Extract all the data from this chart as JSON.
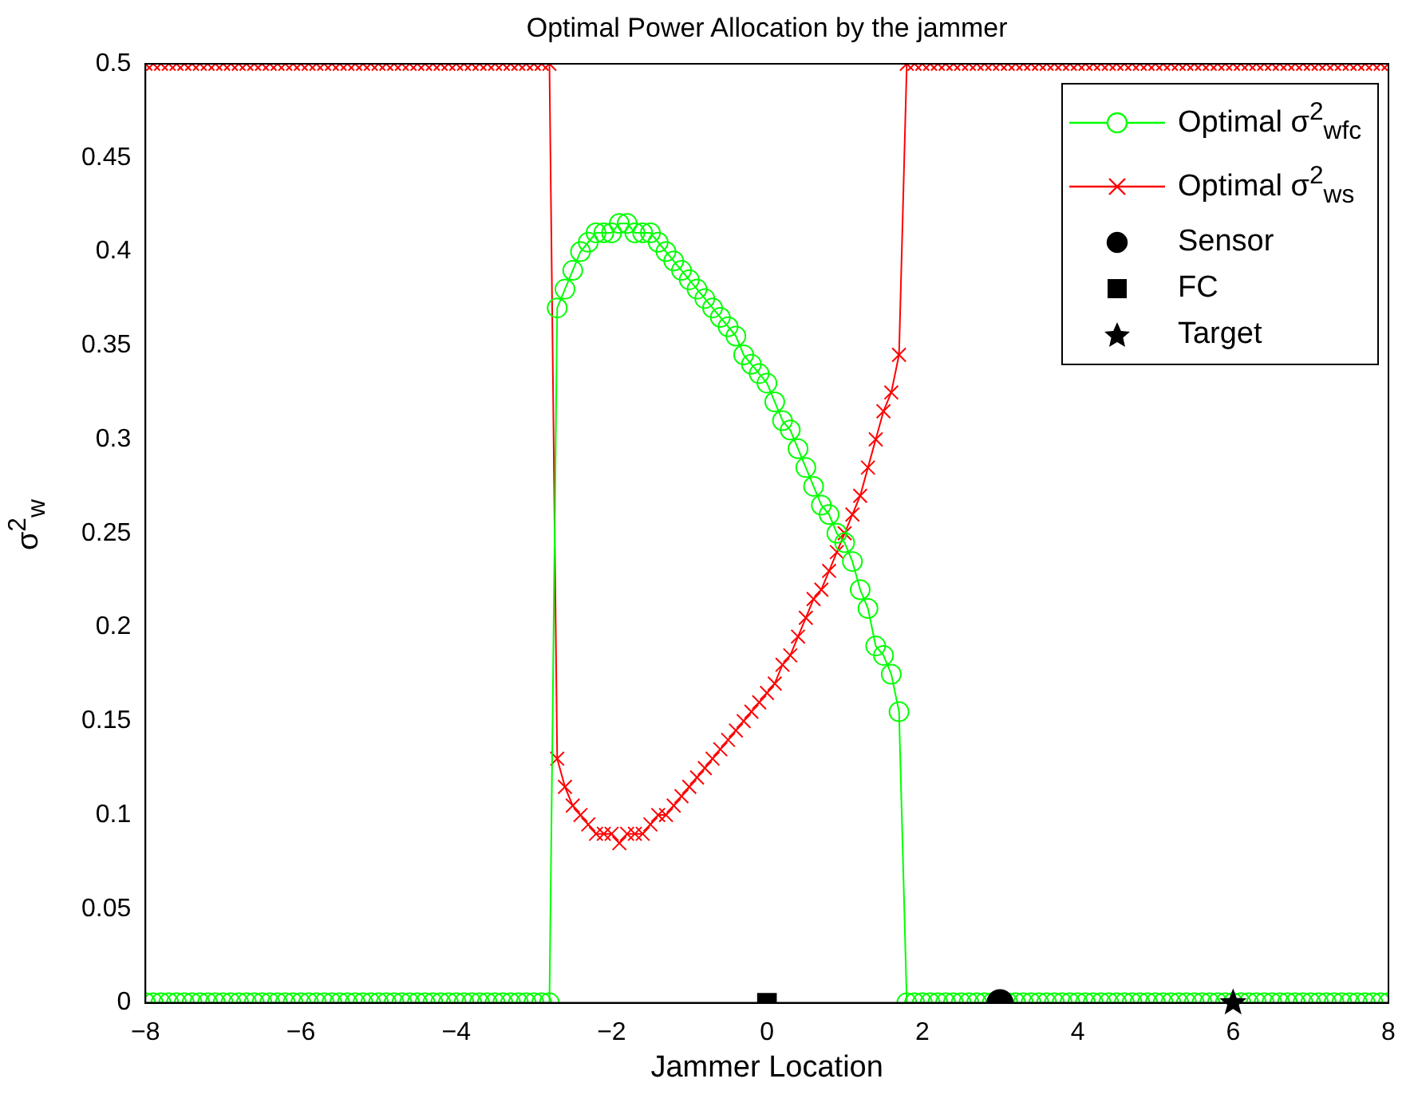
{
  "chart_data": {
    "type": "line",
    "title": "Optimal Power Allocation by the jammer",
    "xlabel": "Jammer Location",
    "ylabel": "σ$^{2}$$_{w}$",
    "x": [
      -8,
      -7.9,
      -7.8,
      -7.7,
      -7.6,
      -7.5,
      -7.4,
      -7.3,
      -7.2,
      -7.1,
      -7,
      -6.9,
      -6.8,
      -6.7,
      -6.6,
      -6.5,
      -6.4,
      -6.3,
      -6.2,
      -6.1,
      -6,
      -5.9,
      -5.8,
      -5.7,
      -5.6,
      -5.5,
      -5.4,
      -5.3,
      -5.2,
      -5.1,
      -5,
      -4.9,
      -4.8,
      -4.7,
      -4.6,
      -4.5,
      -4.4,
      -4.3,
      -4.2,
      -4.1,
      -4,
      -3.9,
      -3.8,
      -3.7,
      -3.6,
      -3.5,
      -3.4,
      -3.3,
      -3.2,
      -3.1,
      -3,
      -2.9,
      -2.8,
      -2.7,
      -2.6,
      -2.5,
      -2.4,
      -2.3,
      -2.2,
      -2.1,
      -2,
      -1.9,
      -1.8,
      -1.7,
      -1.6,
      -1.5,
      -1.4,
      -1.3,
      -1.2,
      -1.1,
      -1,
      -0.9,
      -0.8,
      -0.7,
      -0.6,
      -0.5,
      -0.4,
      -0.3,
      -0.2,
      -0.1,
      0,
      0.1,
      0.2,
      0.3,
      0.4,
      0.5,
      0.6,
      0.7,
      0.8,
      0.9,
      1,
      1.1,
      1.2,
      1.3,
      1.4,
      1.5,
      1.6,
      1.7,
      1.8,
      1.9,
      2,
      2.1,
      2.2,
      2.3,
      2.4,
      2.5,
      2.6,
      2.7,
      2.8,
      2.9,
      3,
      3.1,
      3.2,
      3.3,
      3.4,
      3.5,
      3.6,
      3.7,
      3.8,
      3.9,
      4,
      4.1,
      4.2,
      4.3,
      4.4,
      4.5,
      4.6,
      4.7,
      4.8,
      4.9,
      5,
      5.1,
      5.2,
      5.3,
      5.4,
      5.5,
      5.6,
      5.7,
      5.8,
      5.9,
      6,
      6.1,
      6.2,
      6.3,
      6.4,
      6.5,
      6.6,
      6.7,
      6.8,
      6.9,
      7,
      7.1,
      7.2,
      7.3,
      7.4,
      7.5,
      7.6,
      7.7,
      7.8,
      7.9,
      8
    ],
    "series": [
      {
        "name": "Optimal σ$^{2}$$_{w}$$_{fc}$",
        "marker": "circle",
        "color": "#00ff00",
        "values": [
          0,
          0,
          0,
          0,
          0,
          0,
          0,
          0,
          0,
          0,
          0,
          0,
          0,
          0,
          0,
          0,
          0,
          0,
          0,
          0,
          0,
          0,
          0,
          0,
          0,
          0,
          0,
          0,
          0,
          0,
          0,
          0,
          0,
          0,
          0,
          0,
          0,
          0,
          0,
          0,
          0,
          0,
          0,
          0,
          0,
          0,
          0,
          0,
          0,
          0,
          0,
          0,
          0,
          0.37,
          0.38,
          0.39,
          0.4,
          0.405,
          0.41,
          0.41,
          0.41,
          0.415,
          0.415,
          0.41,
          0.41,
          0.41,
          0.405,
          0.4,
          0.395,
          0.39,
          0.385,
          0.38,
          0.375,
          0.37,
          0.365,
          0.36,
          0.355,
          0.345,
          0.34,
          0.335,
          0.33,
          0.32,
          0.31,
          0.305,
          0.295,
          0.285,
          0.275,
          0.265,
          0.26,
          0.25,
          0.245,
          0.235,
          0.22,
          0.21,
          0.19,
          0.185,
          0.175,
          0.155,
          0,
          0,
          0,
          0,
          0,
          0,
          0,
          0,
          0,
          0,
          0,
          0,
          0,
          0,
          0,
          0,
          0,
          0,
          0,
          0,
          0,
          0,
          0,
          0,
          0,
          0,
          0,
          0,
          0,
          0,
          0,
          0,
          0,
          0,
          0,
          0,
          0,
          0,
          0,
          0,
          0,
          0,
          0,
          0,
          0,
          0,
          0,
          0,
          0,
          0,
          0,
          0,
          0,
          0,
          0,
          0,
          0,
          0,
          0,
          0,
          0,
          0,
          0
        ]
      },
      {
        "name": "Optimal σ$^{2}$$_{w}$$_{s}$",
        "marker": "cross",
        "color": "#ff0000",
        "values": [
          0.5,
          0.5,
          0.5,
          0.5,
          0.5,
          0.5,
          0.5,
          0.5,
          0.5,
          0.5,
          0.5,
          0.5,
          0.5,
          0.5,
          0.5,
          0.5,
          0.5,
          0.5,
          0.5,
          0.5,
          0.5,
          0.5,
          0.5,
          0.5,
          0.5,
          0.5,
          0.5,
          0.5,
          0.5,
          0.5,
          0.5,
          0.5,
          0.5,
          0.5,
          0.5,
          0.5,
          0.5,
          0.5,
          0.5,
          0.5,
          0.5,
          0.5,
          0.5,
          0.5,
          0.5,
          0.5,
          0.5,
          0.5,
          0.5,
          0.5,
          0.5,
          0.5,
          0.5,
          0.13,
          0.115,
          0.105,
          0.1,
          0.095,
          0.09,
          0.09,
          0.09,
          0.085,
          0.09,
          0.09,
          0.09,
          0.095,
          0.1,
          0.1,
          0.105,
          0.11,
          0.115,
          0.12,
          0.125,
          0.13,
          0.135,
          0.14,
          0.145,
          0.15,
          0.155,
          0.16,
          0.165,
          0.17,
          0.18,
          0.185,
          0.195,
          0.205,
          0.215,
          0.22,
          0.23,
          0.24,
          0.25,
          0.26,
          0.27,
          0.285,
          0.3,
          0.315,
          0.325,
          0.345,
          0.5,
          0.5,
          0.5,
          0.5,
          0.5,
          0.5,
          0.5,
          0.5,
          0.5,
          0.5,
          0.5,
          0.5,
          0.5,
          0.5,
          0.5,
          0.5,
          0.5,
          0.5,
          0.5,
          0.5,
          0.5,
          0.5,
          0.5,
          0.5,
          0.5,
          0.5,
          0.5,
          0.5,
          0.5,
          0.5,
          0.5,
          0.5,
          0.5,
          0.5,
          0.5,
          0.5,
          0.5,
          0.5,
          0.5,
          0.5,
          0.5,
          0.5,
          0.5,
          0.5,
          0.5,
          0.5,
          0.5,
          0.5,
          0.5,
          0.5,
          0.5,
          0.5,
          0.5,
          0.5,
          0.5,
          0.5,
          0.5,
          0.5,
          0.5,
          0.5,
          0.5,
          0.5,
          0.5
        ]
      },
      {
        "name": "Sensor",
        "type": "scatter",
        "marker": "circle",
        "color": "#000000",
        "x": [
          3
        ],
        "values": [
          0
        ]
      },
      {
        "name": "FC",
        "type": "scatter",
        "marker": "square",
        "color": "#000000",
        "x": [
          0
        ],
        "values": [
          0
        ]
      },
      {
        "name": "Target",
        "type": "scatter",
        "marker": "star",
        "color": "#000000",
        "x": [
          6
        ],
        "values": [
          0
        ]
      }
    ],
    "xlim": [
      -8,
      8
    ],
    "xticks": [
      -8,
      -6,
      -4,
      -2,
      0,
      2,
      4,
      6,
      8
    ],
    "ylim": [
      0,
      0.5
    ],
    "yticks": [
      0,
      0.05,
      0.1,
      0.15,
      0.2,
      0.25,
      0.3,
      0.35,
      0.4,
      0.45,
      0.5
    ],
    "grid": false,
    "legend": "top right"
  }
}
